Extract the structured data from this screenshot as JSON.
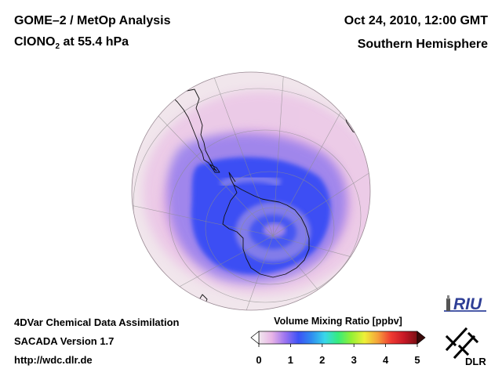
{
  "header": {
    "title_line1": "GOME–2 / MetOp Analysis",
    "species_prefix": "ClONO",
    "species_subscript": "2",
    "species_suffix": " at 55.4 hPa",
    "datetime": "Oct 24, 2010, 12:00 GMT",
    "region": "Southern Hemisphere"
  },
  "footer": {
    "line1": "4DVar Chemical Data Assimilation",
    "line2": "SACADA Version 1.7",
    "line3": "http://wdc.dlr.de"
  },
  "colorbar": {
    "title": "Volume Mixing Ratio [ppbv]",
    "ticks": [
      "0",
      "1",
      "2",
      "3",
      "4",
      "5"
    ],
    "range": [
      0,
      5
    ],
    "stops": [
      "#f1e8ee",
      "#e8b4e6",
      "#9b73f0",
      "#3c52f6",
      "#2f8df0",
      "#38d7ea",
      "#36ec7d",
      "#93f035",
      "#eef038",
      "#f5a23a",
      "#f03b32",
      "#c71826",
      "#7a0e13"
    ]
  },
  "map": {
    "projection": "orthographic, Southern Hemisphere",
    "colors": {
      "background": "#f1e6ec",
      "low": "#e6b0e2",
      "mid": "#6c6cf2",
      "high": "#2f4af6"
    }
  },
  "logos": {
    "riu": "RIU",
    "dlr": "DLR"
  }
}
